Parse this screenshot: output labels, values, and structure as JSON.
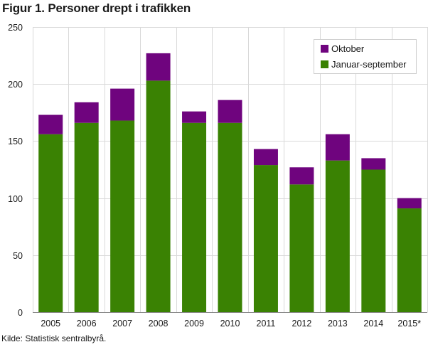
{
  "chart_data": {
    "type": "bar",
    "stacked": true,
    "title": "Figur 1. Personer drept i trafikken",
    "source": "Kilde: Statistisk sentralbyrå.",
    "categories": [
      "2005",
      "2006",
      "2007",
      "2008",
      "2009",
      "2010",
      "2011",
      "2012",
      "2013",
      "2014",
      "2015*"
    ],
    "series": [
      {
        "name": "Januar-september",
        "color": "#3a8203",
        "values": [
          156,
          166,
          168,
          203,
          166,
          166,
          129,
          112,
          133,
          125,
          91
        ]
      },
      {
        "name": "Oktober",
        "color": "#6f047e",
        "values": [
          17,
          18,
          28,
          24,
          10,
          20,
          14,
          15,
          23,
          10,
          9
        ]
      }
    ],
    "yticks": [
      0,
      50,
      100,
      150,
      200,
      250
    ],
    "ylim": [
      0,
      250
    ],
    "xlabel": "",
    "ylabel": "",
    "grid": true,
    "legend_position": "top-right",
    "legend_order": [
      "Oktober",
      "Januar-september"
    ]
  }
}
